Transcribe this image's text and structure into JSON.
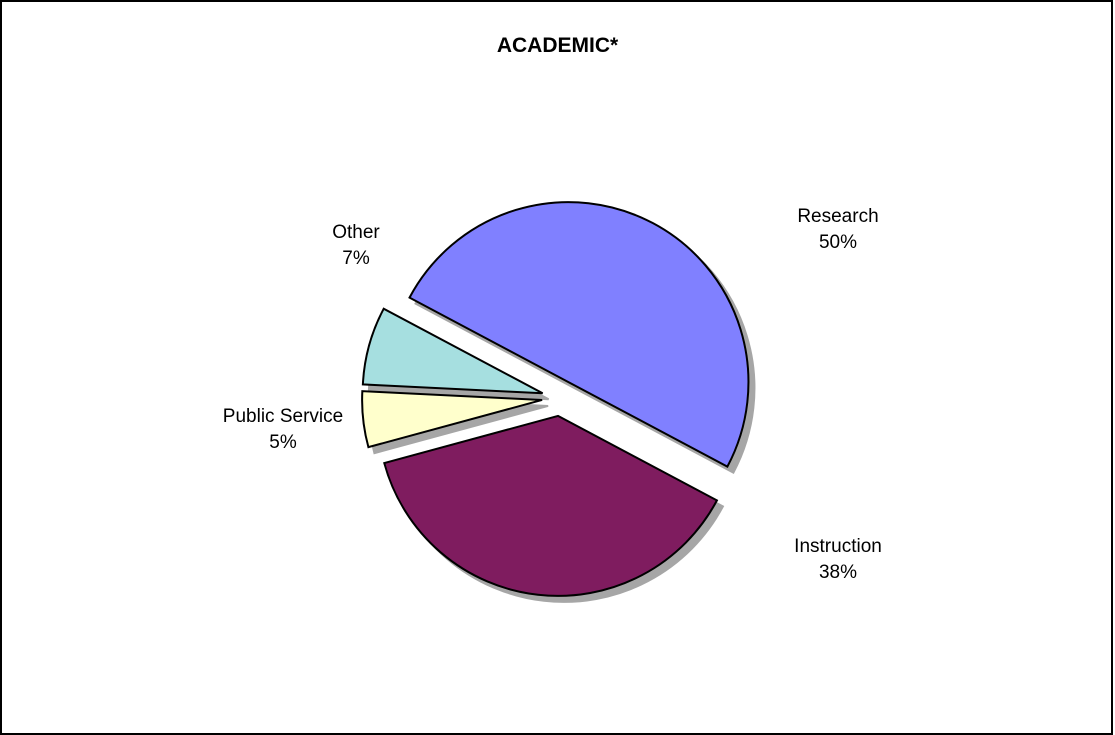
{
  "chart_data": {
    "type": "pie",
    "title": "ACADEMIC*",
    "slices": [
      {
        "name": "Research",
        "value": 50,
        "label": "50%",
        "color": "#8080ff"
      },
      {
        "name": "Instruction",
        "value": 38,
        "label": "38%",
        "color": "#7f1f5f"
      },
      {
        "name": "Public Service",
        "value": 5,
        "label": "5%",
        "color": "#ffffcc"
      },
      {
        "name": "Other",
        "value": 7,
        "label": "7%",
        "color": "#a6dfe0"
      }
    ],
    "exploded": true,
    "legend": "none",
    "label_position": "outside"
  }
}
